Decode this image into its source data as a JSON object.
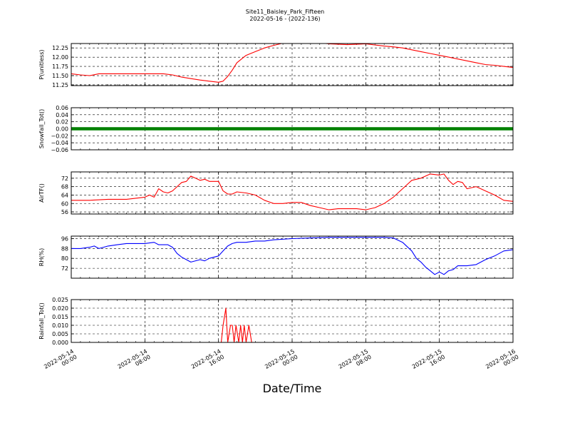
{
  "figure": {
    "title_line1": "Site11_Baisley_Park_Fifteen",
    "title_line2": "2022-05-16 - (2022-136)",
    "xlabel": "Date/Time",
    "xticks": [
      {
        "line1": "2022-05-14",
        "line2": "00:00",
        "hours": 0
      },
      {
        "line1": "2022-05-14",
        "line2": "08:00",
        "hours": 8
      },
      {
        "line1": "2022-05-14",
        "line2": "16:00",
        "hours": 16
      },
      {
        "line1": "2022-05-15",
        "line2": "00:00",
        "hours": 24
      },
      {
        "line1": "2022-05-15",
        "line2": "08:00",
        "hours": 32
      },
      {
        "line1": "2022-05-15",
        "line2": "16:00",
        "hours": 40
      },
      {
        "line1": "2022-05-16",
        "line2": "00:00",
        "hours": 48
      }
    ],
    "x_range_hours": [
      0,
      48
    ]
  },
  "chart_data": [
    {
      "type": "line",
      "ylabel": "P(unitless)",
      "ylim": [
        11.23,
        12.37
      ],
      "yticks": [
        "11.25",
        "11.50",
        "11.75",
        "12.00",
        "12.25"
      ],
      "ytick_values": [
        11.25,
        11.5,
        11.75,
        12.0,
        12.25
      ],
      "color": "#ff0000",
      "grid": true,
      "series": [
        {
          "x_hours": [
            0,
            1,
            2,
            3,
            4,
            6,
            8,
            10,
            11,
            12,
            13,
            14,
            15,
            16,
            16.5,
            17,
            17.5,
            18,
            18.5,
            19,
            20,
            21,
            22,
            23,
            24,
            26,
            28,
            30,
            32,
            34,
            35,
            36,
            37,
            38,
            39,
            40,
            41,
            42,
            43,
            44,
            45,
            46,
            47,
            48
          ],
          "values": [
            11.55,
            11.52,
            11.5,
            11.55,
            11.55,
            11.55,
            11.55,
            11.55,
            11.52,
            11.46,
            11.42,
            11.38,
            11.35,
            11.32,
            11.35,
            11.48,
            11.65,
            11.85,
            11.95,
            12.05,
            12.15,
            12.25,
            12.32,
            12.38,
            12.42,
            12.42,
            12.36,
            12.34,
            12.36,
            12.3,
            12.28,
            12.25,
            12.2,
            12.15,
            12.1,
            12.05,
            12.0,
            11.95,
            11.9,
            11.85,
            11.8,
            11.78,
            11.75,
            11.72
          ]
        }
      ]
    },
    {
      "type": "scatter",
      "ylabel": "Snowfall_Tot()",
      "ylim": [
        -0.06,
        0.06
      ],
      "yticks": [
        "−0.06",
        "−0.04",
        "−0.02",
        "0.00",
        "0.02",
        "0.04",
        "0.06"
      ],
      "ytick_values": [
        -0.06,
        -0.04,
        -0.02,
        0,
        0.02,
        0.04,
        0.06
      ],
      "color": "#008000",
      "grid": true,
      "series": [
        {
          "x_hours": [
            0,
            48
          ],
          "values": [
            0,
            0
          ]
        }
      ]
    },
    {
      "type": "line",
      "ylabel": "AirTF()",
      "ylim": [
        55,
        75
      ],
      "yticks": [
        "56",
        "60",
        "64",
        "68",
        "72"
      ],
      "ytick_values": [
        56,
        60,
        64,
        68,
        72
      ],
      "color": "#ff0000",
      "grid": true,
      "series": [
        {
          "x_hours": [
            0,
            2,
            4,
            6,
            8,
            8.5,
            9,
            9.5,
            10,
            10.5,
            11,
            12,
            12.5,
            13,
            13.5,
            14,
            14.5,
            15,
            16,
            16.5,
            17,
            17.5,
            18,
            19,
            20,
            21,
            22,
            23,
            24,
            25,
            26,
            27,
            28,
            29,
            30,
            31,
            32,
            33,
            34,
            35,
            36,
            37,
            38,
            39,
            40,
            40.5,
            41,
            41.5,
            42,
            42.5,
            43,
            44,
            45,
            46,
            47,
            48
          ],
          "values": [
            61.5,
            61.5,
            62,
            62,
            63,
            64,
            63,
            67,
            65.5,
            65,
            66,
            70,
            70.5,
            73,
            72,
            71,
            71.5,
            70.5,
            70.5,
            66,
            64.5,
            64.5,
            65.5,
            65,
            64,
            61.5,
            60,
            60,
            60.5,
            60.5,
            59,
            58,
            57,
            57.5,
            57.5,
            57.5,
            57,
            58,
            60,
            63,
            67,
            71,
            72,
            74,
            73.5,
            74,
            71,
            69,
            70.5,
            70,
            67,
            68,
            66,
            64,
            61.5,
            61
          ]
        }
      ]
    },
    {
      "type": "line",
      "ylabel": "RH(%)",
      "ylim": [
        64,
        98
      ],
      "yticks": [
        "72",
        "80",
        "88",
        "96"
      ],
      "ytick_values": [
        72,
        80,
        88,
        96
      ],
      "color": "#0000ff",
      "grid": true,
      "series": [
        {
          "x_hours": [
            0,
            1,
            2,
            2.5,
            3,
            4,
            5,
            6,
            7,
            8,
            9,
            9.5,
            10,
            10.5,
            11,
            11.5,
            12,
            13,
            14,
            14.5,
            15,
            16,
            16.5,
            17,
            17.5,
            18,
            19,
            20,
            21,
            22,
            24,
            26,
            28,
            30,
            32,
            34,
            35,
            36,
            37,
            37.5,
            38,
            38.5,
            39,
            39.5,
            40,
            40.5,
            41,
            41.5,
            42,
            43,
            44,
            45,
            46,
            47,
            48
          ],
          "values": [
            88,
            88,
            89,
            90,
            88,
            90,
            91,
            92,
            92,
            92,
            93,
            91,
            91,
            91,
            89,
            84,
            81,
            77,
            79,
            78,
            80,
            82,
            86,
            90,
            92,
            93,
            93,
            94,
            94,
            95,
            96,
            96.5,
            97,
            97,
            97,
            97,
            96.5,
            93,
            86,
            80,
            77,
            73,
            70,
            67,
            69,
            67,
            70,
            71,
            74,
            74,
            75,
            79,
            82,
            86,
            87
          ]
        }
      ]
    },
    {
      "type": "line",
      "ylabel": "Rainfall_Tot()",
      "ylim": [
        0,
        0.025
      ],
      "yticks": [
        "0.000",
        "0.005",
        "0.010",
        "0.015",
        "0.020",
        "0.025"
      ],
      "ytick_values": [
        0,
        0.005,
        0.01,
        0.015,
        0.02,
        0.025
      ],
      "color": "#ff0000",
      "grid": true,
      "series": [
        {
          "x_hours": [
            0,
            16.3,
            16.5,
            16.8,
            17.0,
            17.3,
            17.5,
            17.7,
            17.9,
            18.2,
            18.4,
            18.6,
            18.8,
            19.0,
            19.3,
            19.6,
            20.0,
            48
          ],
          "values": [
            0,
            0,
            0.01,
            0.02,
            0,
            0.01,
            0.01,
            0,
            0.01,
            0,
            0.01,
            0,
            0.01,
            0,
            0.01,
            0,
            0,
            0
          ]
        }
      ]
    }
  ]
}
